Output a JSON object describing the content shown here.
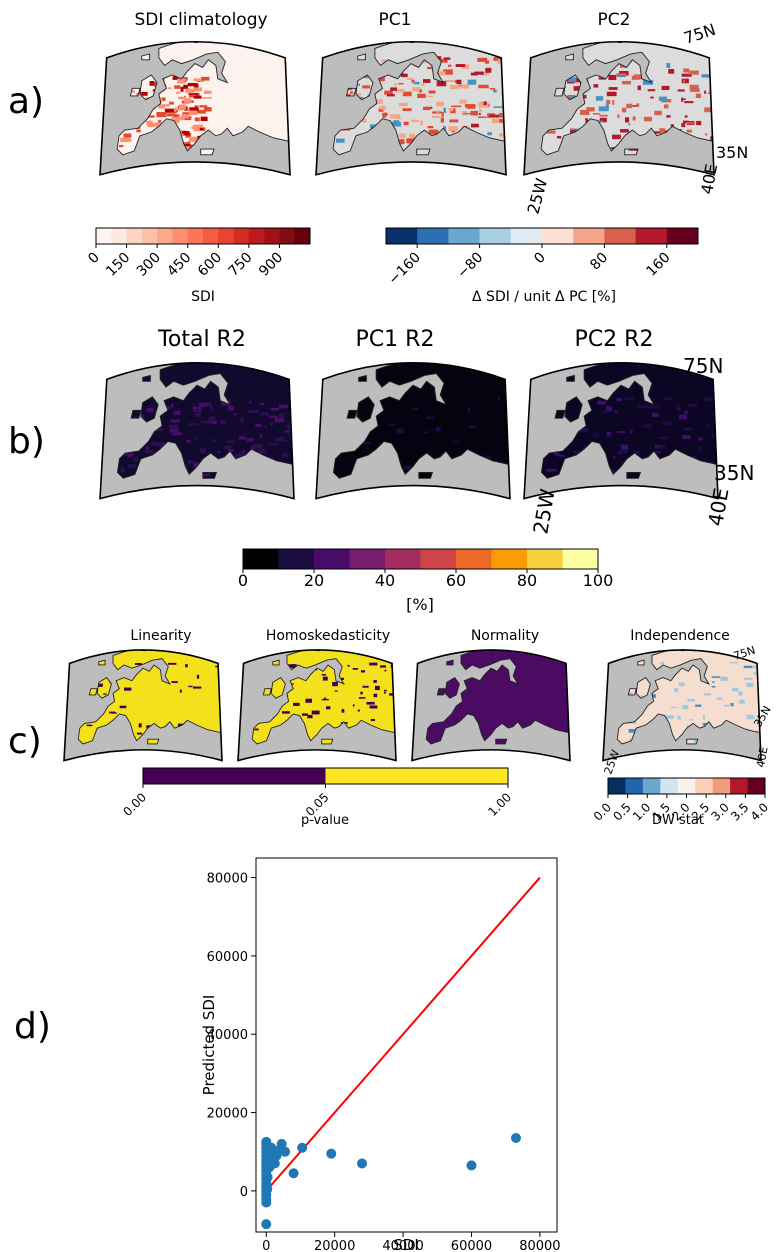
{
  "panels": {
    "a": {
      "label": "a)",
      "maps": [
        {
          "title": "SDI climatology",
          "style": "clim"
        },
        {
          "title": "PC1",
          "style": "pc1"
        },
        {
          "title": "PC2",
          "style": "pc2"
        }
      ],
      "coord_labels": {
        "north_top": "75N",
        "north_mid": "35N",
        "west": "25W",
        "east": "40E"
      },
      "colorbar_sdi": {
        "label": "SDI",
        "ticks": [
          "0",
          "150",
          "300",
          "450",
          "600",
          "750",
          "900"
        ],
        "colors": [
          "#fff5f0",
          "#fee9df",
          "#fdd5c4",
          "#fcc1a9",
          "#fca88c",
          "#fc8e72",
          "#fb7658",
          "#f55d43",
          "#ea432f",
          "#d42b22",
          "#bc1b1d",
          "#a11217",
          "#800b12",
          "#67000d"
        ]
      },
      "colorbar_pc": {
        "label": "Δ SDI / unit Δ PC [%]",
        "ticks": [
          "−160",
          "−80",
          "0",
          "80",
          "160"
        ],
        "colors": [
          "#08306b",
          "#2a70b2",
          "#6aa6d0",
          "#a9cfe5",
          "#dfeaf3",
          "#fbe1d4",
          "#f3a68a",
          "#d9604d",
          "#b2192b",
          "#67001f"
        ]
      }
    },
    "b": {
      "label": "b)",
      "maps": [
        {
          "title": "Total R2",
          "style": "r2total"
        },
        {
          "title": "PC1 R2",
          "style": "r2pc1"
        },
        {
          "title": "PC2 R2",
          "style": "r2pc2"
        }
      ],
      "coord_labels": {
        "north_top": "75N",
        "north_mid": "35N",
        "west": "25W",
        "east": "40E"
      },
      "colorbar": {
        "label": "[%]",
        "ticks": [
          "0",
          "20",
          "40",
          "60",
          "80",
          "100"
        ],
        "colors": [
          "#000004",
          "#1b0c41",
          "#4a0c6b",
          "#781c6d",
          "#a52c60",
          "#cf4446",
          "#ed6925",
          "#fb9b06",
          "#f7d13d",
          "#fcffa4"
        ]
      }
    },
    "c": {
      "label": "c)",
      "maps": [
        {
          "title": "Linearity",
          "style": "lin"
        },
        {
          "title": "Homoskedasticity",
          "style": "homo"
        },
        {
          "title": "Normality",
          "style": "norm"
        },
        {
          "title": "Independence",
          "style": "indep"
        }
      ],
      "coord_labels": {
        "north_top": "75N",
        "north_mid": "35N",
        "west": "25W",
        "east": "40E"
      },
      "colorbar_p": {
        "label": "p-value",
        "ticks": [
          "0.00",
          "0.05",
          "1.00"
        ],
        "colors": [
          "#440154",
          "#fde725"
        ]
      },
      "colorbar_dw": {
        "label": "DW stat",
        "ticks": [
          "0.0",
          "0.5",
          "1.0",
          "1.5",
          "2.0",
          "2.5",
          "3.0",
          "3.5",
          "4.0"
        ],
        "colors": [
          "#053061",
          "#2166ac",
          "#6aa6d0",
          "#d1e5f0",
          "#f7f2ee",
          "#fbd0b9",
          "#f09b7a",
          "#b2182b",
          "#67001f"
        ]
      }
    },
    "d": {
      "label": "d)"
    }
  },
  "chart_data": {
    "type": "scatter",
    "xlabel": "SDI",
    "ylabel": "Predicted SDI",
    "xlim": [
      -3000,
      85000
    ],
    "ylim": [
      -10500,
      85000
    ],
    "xticks": [
      0,
      20000,
      40000,
      60000,
      80000
    ],
    "yticks": [
      0,
      20000,
      40000,
      60000,
      80000
    ],
    "point_color": "#1f77b4",
    "line_color": "#ff0000",
    "reference_line": {
      "x": [
        0,
        80000
      ],
      "y": [
        0,
        80000
      ]
    },
    "points": [
      {
        "x": 0,
        "y": -8500
      },
      {
        "x": 0,
        "y": -3000
      },
      {
        "x": 0,
        "y": -2000
      },
      {
        "x": 0,
        "y": -1000
      },
      {
        "x": 0,
        "y": 0
      },
      {
        "x": 0,
        "y": 1000
      },
      {
        "x": 0,
        "y": 2000
      },
      {
        "x": 0,
        "y": 3000
      },
      {
        "x": 0,
        "y": 4000
      },
      {
        "x": 0,
        "y": 5000
      },
      {
        "x": 0,
        "y": 6000
      },
      {
        "x": 0,
        "y": 7000
      },
      {
        "x": 0,
        "y": 8000
      },
      {
        "x": 0,
        "y": 9000
      },
      {
        "x": 0,
        "y": 10000
      },
      {
        "x": 0,
        "y": 11000
      },
      {
        "x": 0,
        "y": 12000
      },
      {
        "x": 0,
        "y": 12500
      },
      {
        "x": 300,
        "y": 500
      },
      {
        "x": 400,
        "y": 3500
      },
      {
        "x": 500,
        "y": 7500
      },
      {
        "x": 700,
        "y": 9500
      },
      {
        "x": 900,
        "y": 6000
      },
      {
        "x": 1200,
        "y": 8500
      },
      {
        "x": 1500,
        "y": 11000
      },
      {
        "x": 2000,
        "y": 9000
      },
      {
        "x": 2500,
        "y": 7000
      },
      {
        "x": 3000,
        "y": 9000
      },
      {
        "x": 4000,
        "y": 10500
      },
      {
        "x": 4500,
        "y": 12000
      },
      {
        "x": 5500,
        "y": 10000
      },
      {
        "x": 8000,
        "y": 4500
      },
      {
        "x": 10500,
        "y": 11000
      },
      {
        "x": 19000,
        "y": 9500
      },
      {
        "x": 28000,
        "y": 7000
      },
      {
        "x": 60000,
        "y": 6500
      },
      {
        "x": 73000,
        "y": 13500
      }
    ]
  }
}
